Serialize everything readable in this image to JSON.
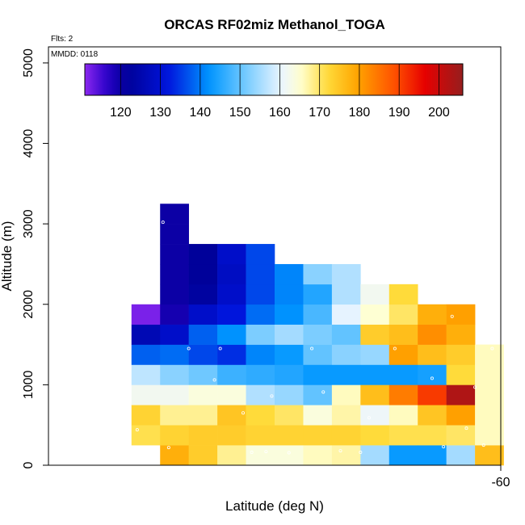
{
  "chart_data": {
    "type": "heatmap",
    "title": "ORCAS RF02miz Methanol_TOGA",
    "flights_label": "Flts: 2",
    "date_label": "MMDD: 0118",
    "xlabel": "Latitude (deg N)",
    "ylabel": "Altitude (m)",
    "x_ticks": [
      {
        "value": -60,
        "label": "-60"
      }
    ],
    "y_ticks": [
      {
        "value": 0,
        "label": "0"
      },
      {
        "value": 1000,
        "label": "1000"
      },
      {
        "value": 2000,
        "label": "2000"
      },
      {
        "value": 3000,
        "label": "3000"
      },
      {
        "value": 4000,
        "label": "4000"
      },
      {
        "value": 5000,
        "label": "5000"
      }
    ],
    "xlim": [
      -75.8,
      -60
    ],
    "ylim": [
      0,
      5200
    ],
    "x_bin_start": -72.9,
    "x_bin_width": 1,
    "y_bin_start": 0,
    "y_bin_width": 250,
    "colorbar": {
      "min": 111,
      "max": 206,
      "ticks": [
        120,
        130,
        140,
        150,
        160,
        170,
        180,
        190,
        200
      ],
      "tick_labels": [
        "120",
        "130",
        "140",
        "150",
        "160",
        "170",
        "180",
        "190",
        "200"
      ]
    },
    "columns": [
      {
        "lat": -72.4,
        "values": [
          null,
          171,
          173,
          162,
          157,
          138,
          126,
          112,
          null,
          null,
          null,
          null,
          null
        ]
      },
      {
        "lat": -71.4,
        "values": [
          178,
          173,
          168,
          162,
          153,
          139,
          129,
          119,
          120,
          120,
          120,
          120,
          120
        ]
      },
      {
        "lat": -70.4,
        "values": [
          174,
          174,
          168,
          164,
          151,
          136,
          138,
          129,
          123,
          122,
          122,
          null,
          null
        ]
      },
      {
        "lat": -69.4,
        "values": [
          168,
          174,
          175,
          164,
          147,
          134,
          142,
          132,
          129,
          128,
          129,
          null,
          null
        ]
      },
      {
        "lat": -68.4,
        "values": [
          164,
          173,
          172,
          156,
          146,
          141,
          152,
          139,
          136,
          136,
          136,
          null,
          null
        ]
      },
      {
        "lat": -67.4,
        "values": [
          164,
          173,
          170,
          154,
          145,
          143,
          155,
          142,
          141,
          141,
          null,
          null,
          null
        ]
      },
      {
        "lat": -66.4,
        "values": [
          166,
          173,
          164,
          150,
          143,
          150,
          152,
          148,
          145,
          153,
          null,
          null,
          null
        ]
      },
      {
        "lat": -65.4,
        "values": [
          167,
          173,
          167,
          166,
          143,
          153,
          150,
          160,
          156,
          156,
          null,
          null,
          null
        ]
      },
      {
        "lat": -64.4,
        "values": [
          155,
          172,
          161,
          176,
          143,
          154,
          174,
          165,
          162,
          null,
          null,
          null,
          null
        ]
      },
      {
        "lat": -63.4,
        "values": [
          143,
          171,
          166,
          184,
          143,
          180,
          176,
          170,
          172,
          null,
          null,
          null,
          null
        ]
      },
      {
        "lat": -62.4,
        "values": [
          143,
          171,
          175,
          191,
          144,
          176,
          182,
          178,
          null,
          null,
          null,
          null,
          null
        ]
      },
      {
        "lat": -61.4,
        "values": [
          155,
          170,
          180,
          203,
          172,
          174,
          178,
          180,
          null,
          null,
          null,
          null,
          null
        ]
      },
      {
        "lat": -60.4,
        "values": [
          176,
          166,
          166,
          166,
          166,
          166,
          null,
          null,
          null,
          null,
          null,
          null,
          null
        ]
      }
    ],
    "points": [
      {
        "lat": -72.0,
        "alt": 165
      },
      {
        "lat": -71.6,
        "alt": 220
      },
      {
        "lat": -72.7,
        "alt": 440
      },
      {
        "lat": -70.0,
        "alt": 1060
      },
      {
        "lat": -69.0,
        "alt": 650
      },
      {
        "lat": -68.0,
        "alt": 860
      },
      {
        "lat": -67.4,
        "alt": 155
      },
      {
        "lat": -66.6,
        "alt": 1450
      },
      {
        "lat": -65.6,
        "alt": 180
      },
      {
        "lat": -64.6,
        "alt": 590
      },
      {
        "lat": -63.7,
        "alt": 1450
      },
      {
        "lat": -62.4,
        "alt": 1080
      },
      {
        "lat": -61.7,
        "alt": 1850
      },
      {
        "lat": -61.2,
        "alt": 460
      },
      {
        "lat": -60.9,
        "alt": 970
      },
      {
        "lat": -62.0,
        "alt": 230
      },
      {
        "lat": -69.8,
        "alt": 1450
      },
      {
        "lat": -70.9,
        "alt": 1450
      },
      {
        "lat": -72.4,
        "alt": 2160
      },
      {
        "lat": -71.8,
        "alt": 3020
      },
      {
        "lat": -73.2,
        "alt": 1300
      },
      {
        "lat": -60.3,
        "alt": 1450
      },
      {
        "lat": -60.6,
        "alt": 250
      },
      {
        "lat": -68.7,
        "alt": 160
      },
      {
        "lat": -68.2,
        "alt": 170
      },
      {
        "lat": -64.9,
        "alt": 160
      },
      {
        "lat": -66.2,
        "alt": 910
      }
    ]
  }
}
